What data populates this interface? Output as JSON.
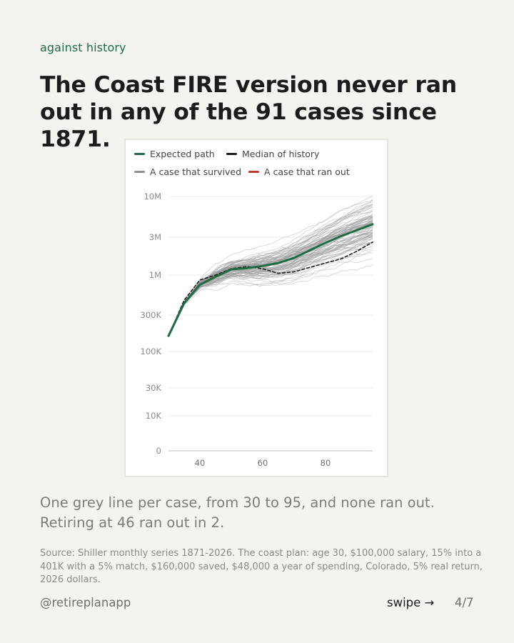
{
  "eyebrow": "against history",
  "title": "The Coast FIRE version never ran out in any of the 91 cases since 1871.",
  "caption": "One grey line per case, from 30 to 95, and none ran out. Retiring at 46 ran out in 2.",
  "source": "Source: Shiller monthly series 1871-2026. The coast plan: age 30, $100,000 salary, 15% into a 401K with a 5% match, $160,000 saved, $48,000 a year of spending, Colorado, 5% real return, 2026 dollars.",
  "footer": {
    "handle": "@retireplanapp",
    "swipe_label": "swipe →",
    "page_indicator": "4/7"
  },
  "chart_data": {
    "type": "line",
    "title": "",
    "xlabel": "",
    "ylabel": "",
    "x_range": [
      30,
      95
    ],
    "x_ticks": [
      40,
      60,
      80
    ],
    "y_scale": "log",
    "y_ticks": [
      {
        "value": 0,
        "label": "0"
      },
      {
        "value": 10000,
        "label": "10K"
      },
      {
        "value": 30000,
        "label": "30K"
      },
      {
        "value": 100000,
        "label": "100K"
      },
      {
        "value": 300000,
        "label": "300K"
      },
      {
        "value": 1000000,
        "label": "1M"
      },
      {
        "value": 3000000,
        "label": "3M"
      },
      {
        "value": 10000000,
        "label": "10M"
      }
    ],
    "grid": true,
    "legend_position": "top",
    "legend": [
      {
        "label": "Expected path",
        "color": "#1f6b45"
      },
      {
        "label": "Median of history",
        "color": "#1c1c1c"
      },
      {
        "label": "A case that survived",
        "color": "#8f8f8f"
      },
      {
        "label": "A case that ran out",
        "color": "#c0392b"
      }
    ],
    "case_count": 91,
    "cases_ran_out": 0,
    "series": [
      {
        "name": "Expected path",
        "color": "#1f6b45",
        "x": [
          30,
          35,
          40,
          45,
          50,
          55,
          60,
          65,
          70,
          75,
          80,
          85,
          90,
          95
        ],
        "values": [
          160000,
          430000,
          750000,
          950000,
          1180000,
          1220000,
          1300000,
          1420000,
          1650000,
          2050000,
          2550000,
          3100000,
          3700000,
          4400000
        ]
      },
      {
        "name": "Median of history",
        "color": "#1c1c1c",
        "dashed": true,
        "x": [
          30,
          35,
          40,
          45,
          50,
          55,
          60,
          65,
          70,
          75,
          80,
          85,
          90,
          95
        ],
        "values": [
          160000,
          470000,
          860000,
          1000000,
          1200000,
          1280000,
          1200000,
          1050000,
          1100000,
          1250000,
          1420000,
          1600000,
          2000000,
          2600000
        ]
      }
    ]
  }
}
